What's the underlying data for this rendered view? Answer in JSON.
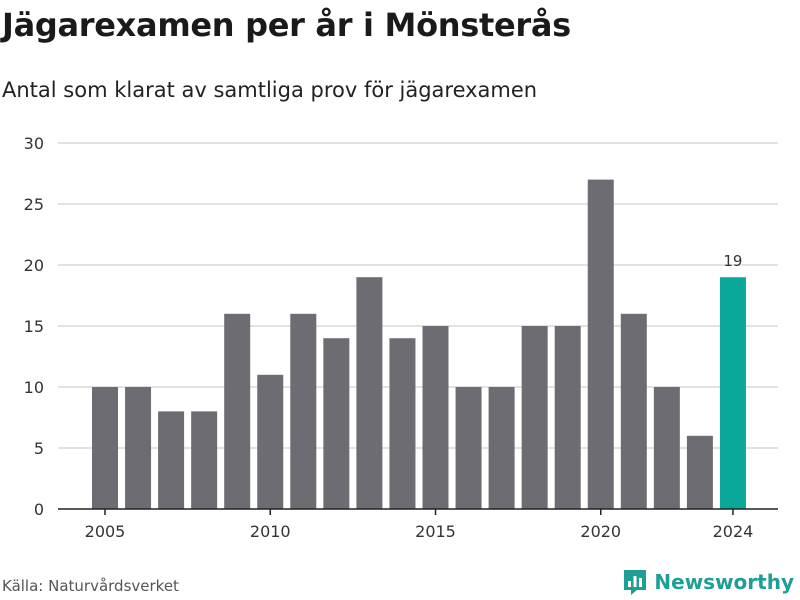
{
  "header": {
    "title": "Jägarexamen per år i Mönsterås",
    "subtitle": "Antal som klarat av samtliga prov för jägarexamen"
  },
  "footer": {
    "source": "Källa: Naturvårdsverket",
    "brand": "Newsworthy",
    "brand_icon": "newsworthy-logo-icon"
  },
  "colors": {
    "bar": "#6d6c72",
    "highlight": "#0aa89b",
    "grid": "#d9d9d9",
    "axis": "#222222",
    "brand": "#1f9e96"
  },
  "chart_data": {
    "type": "bar",
    "x": [
      2005,
      2006,
      2007,
      2008,
      2009,
      2010,
      2011,
      2012,
      2013,
      2014,
      2015,
      2016,
      2017,
      2018,
      2019,
      2020,
      2021,
      2022,
      2023,
      2024
    ],
    "values": [
      10,
      10,
      8,
      8,
      16,
      11,
      16,
      14,
      19,
      14,
      15,
      10,
      10,
      15,
      15,
      27,
      16,
      10,
      6,
      19
    ],
    "xticks": [
      "2005",
      "2010",
      "2015",
      "2020",
      "2024"
    ],
    "yticks": [
      "0",
      "5",
      "10",
      "15",
      "20",
      "25",
      "30"
    ],
    "ylim": [
      0,
      30
    ],
    "grid": true,
    "highlight_index": 19,
    "data_labels": [
      {
        "index": 19,
        "text": "19"
      }
    ]
  }
}
